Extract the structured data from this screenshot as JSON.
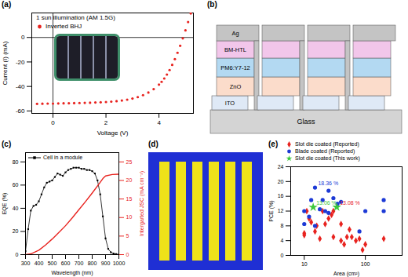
{
  "chart_data": [
    {
      "panel": "(a)",
      "type": "scatter",
      "title": "1 sun illumination (AM 1.5G)",
      "x_label": "Voltage (V)",
      "y_label": "Current (I) (mA)",
      "xlim": [
        -0.8,
        5.3
      ],
      "xticks": [
        0,
        2,
        4
      ],
      "ylim": [
        -62,
        20
      ],
      "yticks": [
        -60,
        -40,
        -20,
        0
      ],
      "legend": "top-left",
      "series": [
        {
          "name": "Inverted BHJ",
          "color": "#e8231f",
          "marker": "circle",
          "x": [
            -0.6,
            -0.4,
            -0.2,
            0,
            0.2,
            0.4,
            0.6,
            0.8,
            1.0,
            1.2,
            1.4,
            1.6,
            1.8,
            2.0,
            2.2,
            2.4,
            2.6,
            2.8,
            3.0,
            3.2,
            3.4,
            3.6,
            3.8,
            4.0,
            4.1,
            4.2,
            4.3,
            4.4,
            4.5,
            4.6,
            4.7,
            4.8,
            4.9,
            5.0,
            5.1,
            5.2
          ],
          "values": [
            -54.2,
            -54.1,
            -54.0,
            -54.0,
            -53.9,
            -53.8,
            -53.7,
            -53.6,
            -53.5,
            -53.4,
            -53.3,
            -53.1,
            -52.9,
            -52.7,
            -52.4,
            -52.0,
            -51.5,
            -50.8,
            -49.9,
            -48.7,
            -47.1,
            -45.0,
            -42.2,
            -38.5,
            -36.2,
            -33.5,
            -30.3,
            -26.6,
            -22.4,
            -17.7,
            -12.5,
            -6.8,
            -0.7,
            5.8,
            12.6,
            19.6
          ]
        }
      ]
    },
    {
      "panel": "(c)",
      "type": "line",
      "x_label": "Wavelength (nm)",
      "y_label": "EQE (%)",
      "y2_label": "Intergarted JSC (mA cm⁻²)",
      "xlim": [
        300,
        1000
      ],
      "xticks": [
        300,
        400,
        500,
        600,
        700,
        800,
        900,
        1000
      ],
      "ylim": [
        0,
        88
      ],
      "yticks": [
        0,
        20,
        40,
        60,
        80
      ],
      "y2lim": [
        0,
        27.5
      ],
      "y2ticks": [
        0,
        5,
        10,
        15,
        20,
        25
      ],
      "legend": "top-left",
      "series": [
        {
          "name": "Cell in a module",
          "color": "#000000",
          "marker": "square",
          "x": [
            300,
            320,
            340,
            360,
            380,
            400,
            420,
            440,
            460,
            480,
            500,
            520,
            540,
            560,
            580,
            600,
            620,
            640,
            660,
            680,
            700,
            720,
            740,
            760,
            780,
            800,
            820,
            840,
            860,
            880,
            900,
            920,
            940,
            960,
            980,
            1000
          ],
          "values": [
            3,
            22,
            38,
            42,
            43,
            46,
            52,
            58,
            62,
            63,
            64,
            67,
            70,
            69,
            68,
            71,
            73,
            74,
            75,
            75,
            75,
            74,
            74,
            73,
            73,
            72,
            70,
            64,
            52,
            33,
            14,
            5,
            2,
            1,
            0.5,
            0
          ]
        },
        {
          "color": "#e8231f",
          "axis": "y2",
          "x": [
            300,
            340,
            400,
            450,
            500,
            550,
            600,
            650,
            700,
            750,
            800,
            850,
            880,
            900,
            950,
            1000
          ],
          "values": [
            0,
            0.2,
            1.2,
            2.6,
            4.2,
            6.0,
            7.8,
            9.9,
            12.1,
            14.3,
            16.6,
            19.0,
            20.5,
            21.2,
            21.6,
            21.7
          ]
        }
      ]
    },
    {
      "panel": "(e)",
      "type": "scatter",
      "log": "x",
      "x_label": "Area (cm²)",
      "y_label": "PCE (%)",
      "xlim": [
        6,
        400
      ],
      "xticks": [
        10,
        100
      ],
      "ylim": [
        0,
        24
      ],
      "yticks": [
        0,
        4,
        8,
        12,
        16,
        20,
        24
      ],
      "legend": "top-left",
      "series": [
        {
          "name": "Slot die coated (Reported)",
          "color": "#e8231f",
          "marker": "diamond",
          "x": [
            10,
            10,
            11,
            12,
            13,
            15,
            16,
            18,
            20,
            22,
            25,
            28,
            30,
            30,
            40,
            40,
            45,
            50,
            55,
            60,
            70,
            80,
            90,
            100,
            200
          ],
          "values": [
            6,
            5.5,
            12,
            10,
            9,
            6.5,
            8,
            4.5,
            12,
            8.5,
            10,
            11,
            12,
            5,
            8.5,
            4,
            3,
            5,
            7,
            5,
            4,
            4.5,
            1.5,
            3,
            4.5
          ]
        },
        {
          "name": "Blade coated (Reported)",
          "color": "#1d3ad6",
          "marker": "circle",
          "x": [
            10,
            10,
            12,
            13,
            15,
            15,
            18,
            20,
            22,
            25,
            25,
            30,
            35,
            40,
            80,
            100,
            200,
            200
          ],
          "values": [
            8.5,
            12,
            10.5,
            15,
            8,
            18.36,
            12.5,
            15,
            12,
            11.5,
            17.5,
            15.5,
            14,
            14.5,
            6.5,
            12,
            12,
            15
          ]
        },
        {
          "name": "Slot die coated (This work)",
          "color": "#3cc83c",
          "marker": "star",
          "x": [
            14,
            34
          ],
          "values": [
            13.06,
            13.08
          ]
        }
      ],
      "annotations": [
        {
          "text": "18.36 %",
          "x": 15,
          "y": 18.36,
          "color": "#1d3ad6"
        },
        {
          "text": "13.06 %",
          "x": 14,
          "y": 13.06,
          "color": "#3cc83c"
        },
        {
          "text": "13.08 %",
          "x": 34,
          "y": 13.08,
          "color": "#e8231f"
        }
      ]
    }
  ],
  "diagram": {
    "panel": "(b)",
    "layers": [
      "Ag",
      "BM-HTL",
      "PM6:Y7-12",
      "ZnO",
      "ITO",
      "Glass"
    ],
    "cells": 4
  },
  "image": {
    "panel": "(d)",
    "stripes": 6
  }
}
